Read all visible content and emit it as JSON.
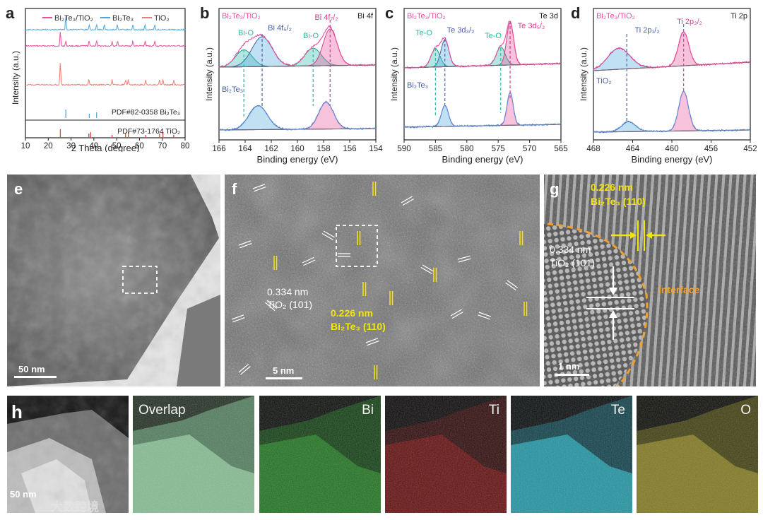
{
  "colors": {
    "composite": "#e8509b",
    "bi2te3": "#4aa8de",
    "tio2": "#ef7d73",
    "ref": "#e04040",
    "yellow": "#f3e600",
    "orange": "#f0a030"
  },
  "panels": {
    "a": {
      "letter": "a",
      "legend": [
        "Bi₂Te₃/TiO₂",
        "Bi₂Te₃",
        "TiO₂"
      ],
      "ref1": "PDF#82-0358 Bi₂Te₃",
      "ref2": "PDF#73-1764 TiO₂",
      "xlabel": "2 Theta (degree)",
      "ylabel": "Intensity (a.u.)",
      "xticks": [
        "10",
        "20",
        "30",
        "40",
        "50",
        "60",
        "70",
        "80"
      ]
    },
    "b": {
      "letter": "b",
      "element": "Bi 4f",
      "top_label": "Bi₂Te₃/TiO₂",
      "bottom_label": "Bi₂Te₃",
      "peak1": "Bi-O",
      "peak2": "Bi 4f5/2",
      "peak3": "Bi-O",
      "peak4": "Bi 4f7/2",
      "xlabel": "Binding energy (eV)",
      "ylabel": "Intensity (a.u.)",
      "xticks": [
        "166",
        "164",
        "162",
        "160",
        "158",
        "156",
        "154"
      ]
    },
    "c": {
      "letter": "c",
      "element": "Te 3d",
      "top_label": "Bi₂Te₃/TiO₂",
      "bottom_label": "Bi₂Te₃",
      "peak1": "Te-O",
      "peak2": "Te 3d3/2",
      "peak3": "Te-O",
      "peak4": "Te 3d5/2",
      "xlabel": "Binding energy (eV)",
      "ylabel": "Intensity (a.u.)",
      "xticks": [
        "590",
        "585",
        "580",
        "575",
        "570",
        "565"
      ]
    },
    "d": {
      "letter": "d",
      "element": "Ti 2p",
      "top_label": "Bi₂Te₃/TiO₂",
      "bottom_label": "TiO₂",
      "peak1": "Ti 2p1/2",
      "peak2": "Ti 2p3/2",
      "xlabel": "Binding energy (eV)",
      "ylabel": "Intensity (a.u.)",
      "xticks": [
        "468",
        "464",
        "460",
        "456",
        "452"
      ]
    },
    "e": {
      "letter": "e",
      "scale": "50 nm"
    },
    "f": {
      "letter": "f",
      "scale": "5 nm",
      "tio2_d": "0.334 nm",
      "tio2_plane": "TiO₂ (101)",
      "bi_d": "0.226 nm",
      "bi_plane": "Bi₂Te₃ (110)"
    },
    "g": {
      "letter": "g",
      "scale": "1 nm",
      "bi_d": "0.226 nm",
      "bi_plane": "Bi₂Te₃ (110)",
      "tio2_d": "0.334 nm",
      "tio2_plane": "TiO₂ (101)",
      "interface": "Interface"
    },
    "h": {
      "letter": "h",
      "scale": "50 nm",
      "maps": [
        "Overlap",
        "Bi",
        "Ti",
        "Te",
        "O"
      ],
      "watermark": "大数跨境"
    }
  },
  "chart_data": [
    {
      "type": "line",
      "title": "",
      "xlabel": "2 Theta (degree)",
      "ylabel": "Intensity (a.u.)",
      "xlim": [
        10,
        80
      ],
      "series": [
        {
          "name": "Bi₂Te₃/TiO₂",
          "peaks_x": [
            25.3,
            27.7,
            37.9,
            41.2,
            48.0,
            50.4,
            57.1,
            62.5,
            66.7
          ]
        },
        {
          "name": "Bi₂Te₃",
          "peaks_x": [
            27.7,
            38.0,
            41.2,
            44.6,
            50.3,
            57.1,
            62.4,
            66.7
          ]
        },
        {
          "name": "TiO₂",
          "peaks_x": [
            25.3,
            37.8,
            48.0,
            53.9,
            55.1,
            62.7,
            68.8,
            70.3,
            75.0
          ]
        }
      ],
      "references": [
        {
          "name": "PDF#82-0358 Bi₂Te₃",
          "x": [
            27.7,
            38.0,
            41.2
          ]
        },
        {
          "name": "PDF#73-1764 TiO₂",
          "x": [
            25.3,
            37.8,
            38.6,
            48.0,
            53.9,
            55.1,
            62.7,
            68.8,
            70.3,
            75.0
          ]
        }
      ]
    },
    {
      "type": "line",
      "title": "Bi 4f",
      "xlabel": "Binding energy (eV)",
      "ylabel": "Intensity (a.u.)",
      "xlim": [
        166,
        154
      ],
      "series": [
        {
          "name": "Bi₂Te₃/TiO₂",
          "peaks_eV": {
            "Bi-O (5/2)": 164.1,
            "Bi 4f5/2": 162.7,
            "Bi-O (7/2)": 158.8,
            "Bi 4f7/2": 157.5
          }
        },
        {
          "name": "Bi₂Te₃",
          "peaks_eV": {
            "Bi 4f5/2": 163.0,
            "Bi 4f7/2": 157.8
          }
        }
      ]
    },
    {
      "type": "line",
      "title": "Te 3d",
      "xlabel": "Binding energy (eV)",
      "ylabel": "Intensity (a.u.)",
      "xlim": [
        590,
        565
      ],
      "series": [
        {
          "name": "Bi₂Te₃/TiO₂",
          "peaks_eV": {
            "Te-O (3/2)": 585.0,
            "Te 3d3/2": 583.5,
            "Te-O (5/2)": 574.6,
            "Te 3d5/2": 573.1
          }
        },
        {
          "name": "Bi₂Te₃",
          "peaks_eV": {
            "Te 3d3/2": 583.5,
            "Te 3d5/2": 573.1
          }
        }
      ]
    },
    {
      "type": "line",
      "title": "Ti 2p",
      "xlabel": "Binding energy (eV)",
      "ylabel": "Intensity (a.u.)",
      "xlim": [
        468,
        452
      ],
      "series": [
        {
          "name": "Bi₂Te₃/TiO₂",
          "peaks_eV": {
            "Ti 2p1/2": 464.6,
            "Ti 2p3/2": 458.8
          }
        },
        {
          "name": "TiO₂",
          "peaks_eV": {
            "Ti 2p1/2": 464.4,
            "Ti 2p3/2": 458.8
          }
        }
      ]
    }
  ]
}
